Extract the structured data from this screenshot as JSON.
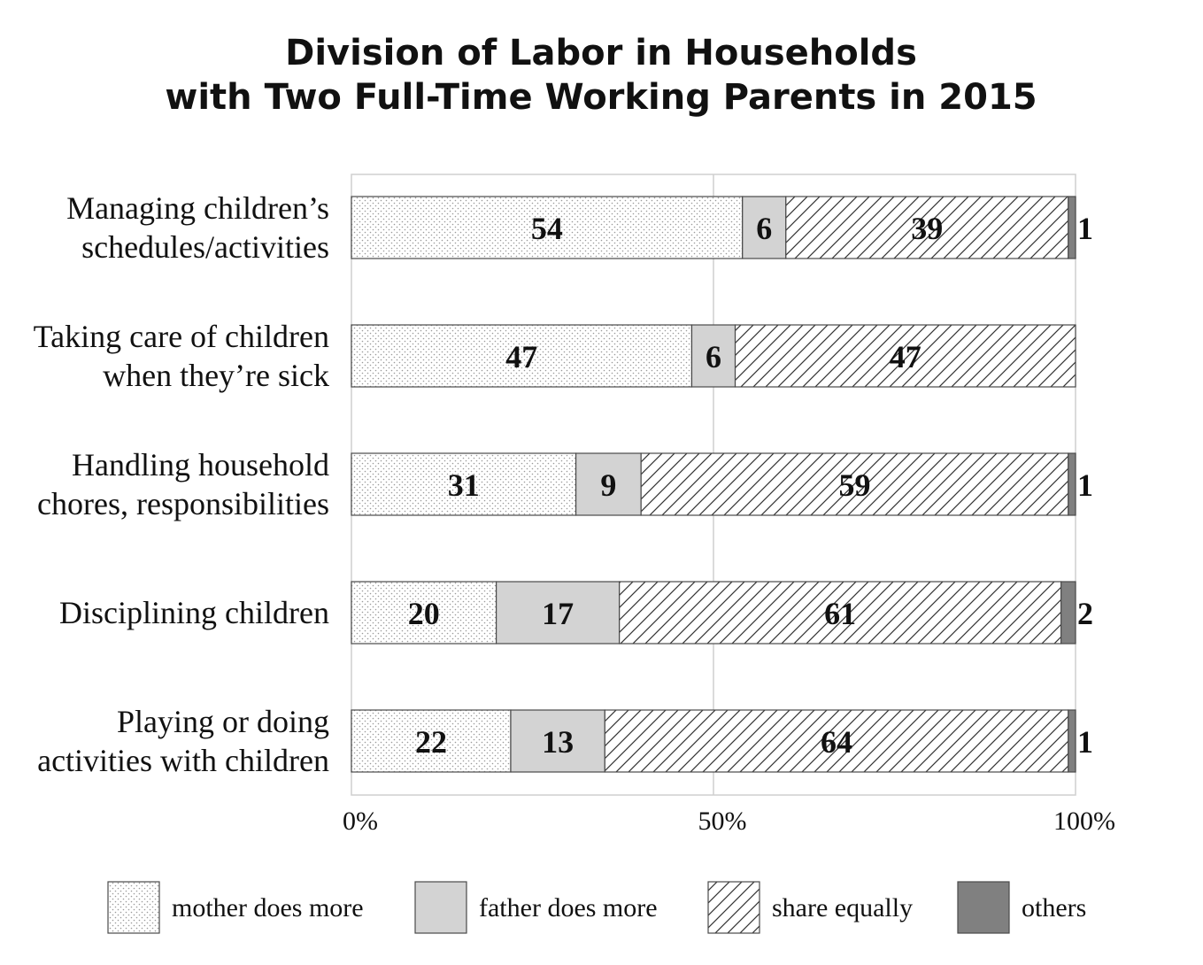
{
  "chart_data": {
    "type": "bar",
    "orientation": "horizontal",
    "stacked": true,
    "title_lines": [
      "Division of Labor in Households",
      "with Two Full-Time Working Parents in 2015"
    ],
    "categories": [
      [
        "Managing children’s",
        "schedules/activities"
      ],
      [
        "Taking care of children",
        "when they’re sick"
      ],
      [
        "Handling household",
        "chores, responsibilities"
      ],
      [
        "Disciplining children"
      ],
      [
        "Playing or doing",
        "activities with children"
      ]
    ],
    "series": [
      {
        "name": "mother does more",
        "values": [
          54,
          47,
          31,
          20,
          22
        ],
        "fill": "dots",
        "color": "#ffffff"
      },
      {
        "name": "father does more",
        "values": [
          6,
          6,
          9,
          17,
          13
        ],
        "fill": "solid",
        "color": "#d3d3d3"
      },
      {
        "name": "share equally",
        "values": [
          39,
          47,
          59,
          61,
          64
        ],
        "fill": "hatch",
        "color": "#ffffff"
      },
      {
        "name": "others",
        "values": [
          1,
          0,
          1,
          2,
          1
        ],
        "fill": "solid",
        "color": "#808080"
      }
    ],
    "xlim": [
      0,
      100
    ],
    "xticks": [
      "0%",
      "50%",
      "100%"
    ],
    "grid": true,
    "legend_position": "bottom"
  }
}
